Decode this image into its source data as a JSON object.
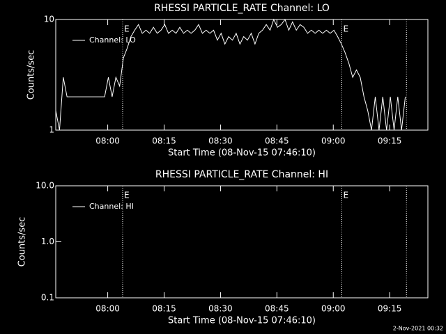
{
  "chart_data": [
    {
      "type": "line",
      "title": "RHESSI PARTICLE_RATE Channel: LO",
      "xlabel": "Start Time (08-Nov-15 07:46:10)",
      "ylabel": "Counts/sec",
      "log_y": true,
      "ylim": [
        1,
        10
      ],
      "yticks": [
        1,
        10
      ],
      "xlim": [
        0,
        99
      ],
      "xticks": [
        {
          "value": 13.83,
          "label": "08:00"
        },
        {
          "value": 28.83,
          "label": "08:15"
        },
        {
          "value": 43.83,
          "label": "08:30"
        },
        {
          "value": 58.83,
          "label": "08:45"
        },
        {
          "value": 73.83,
          "label": "09:00"
        },
        {
          "value": 88.83,
          "label": "09:15"
        }
      ],
      "markers": [
        {
          "x": 17.8,
          "label": "E"
        },
        {
          "x": 76.1,
          "label": "E"
        },
        {
          "x": 93.3
        }
      ],
      "x": [
        0,
        1,
        2,
        3,
        4,
        5,
        6,
        7,
        8,
        9,
        10,
        11,
        12,
        13,
        14,
        15,
        16,
        17,
        18,
        19,
        20,
        21,
        22,
        23,
        24,
        25,
        26,
        27,
        28,
        29,
        30,
        31,
        32,
        33,
        34,
        35,
        36,
        37,
        38,
        39,
        40,
        41,
        42,
        43,
        44,
        45,
        46,
        47,
        48,
        49,
        50,
        51,
        52,
        53,
        54,
        55,
        56,
        57,
        58,
        59,
        60,
        61,
        62,
        63,
        64,
        65,
        66,
        67,
        68,
        69,
        70,
        71,
        72,
        73,
        74,
        75,
        76,
        77,
        78,
        79,
        80,
        81,
        82,
        83,
        84,
        85,
        86,
        87,
        88,
        89,
        90,
        91,
        92,
        93
      ],
      "series": [
        {
          "name": "Channel: LO",
          "color": "#ffffff",
          "values": [
            1.5,
            1,
            3,
            2,
            2,
            2,
            2,
            2,
            2,
            2,
            2,
            2,
            2,
            2,
            3,
            2,
            3,
            2.5,
            4.5,
            5.5,
            7,
            8,
            9,
            7.5,
            8,
            7.5,
            8.5,
            7.5,
            8,
            9,
            7.5,
            8,
            7.5,
            8.5,
            7.5,
            8,
            7.5,
            8,
            9,
            7.5,
            8,
            7.5,
            8,
            6.5,
            7.5,
            6,
            7,
            6.5,
            7.5,
            6,
            7,
            6.5,
            7.5,
            6,
            7.5,
            8,
            9,
            8,
            10,
            8.5,
            9,
            10,
            8,
            9.5,
            8,
            9,
            8.5,
            7.5,
            8,
            7.5,
            8,
            7.5,
            8,
            7.5,
            8,
            7,
            6,
            5,
            4,
            3,
            3.5,
            3,
            2,
            1.5,
            1,
            2,
            1,
            2,
            1,
            2,
            1,
            2,
            1,
            2
          ]
        }
      ]
    },
    {
      "type": "line",
      "title": "RHESSI PARTICLE_RATE Channel: HI",
      "xlabel": "Start Time (08-Nov-15 07:46:10)",
      "ylabel": "Counts/sec",
      "log_y": true,
      "ylim": [
        0.1,
        10
      ],
      "yticks": [
        0.1,
        {
          "value": 1,
          "label": "1.0"
        },
        {
          "value": 10,
          "label": "10.0"
        }
      ],
      "xlim": [
        0,
        99
      ],
      "xticks": [
        {
          "value": 13.83,
          "label": "08:00"
        },
        {
          "value": 28.83,
          "label": "08:15"
        },
        {
          "value": 43.83,
          "label": "08:30"
        },
        {
          "value": 58.83,
          "label": "08:45"
        },
        {
          "value": 73.83,
          "label": "09:00"
        },
        {
          "value": 88.83,
          "label": "09:15"
        }
      ],
      "markers": [
        {
          "x": 17.8,
          "label": "E"
        },
        {
          "x": 76.1,
          "label": "E"
        },
        {
          "x": 93.3
        }
      ],
      "x": [],
      "series": [
        {
          "name": "Channel: HI",
          "color": "#ffffff",
          "values": []
        }
      ]
    }
  ],
  "footer": "2-Nov-2021 00:32"
}
